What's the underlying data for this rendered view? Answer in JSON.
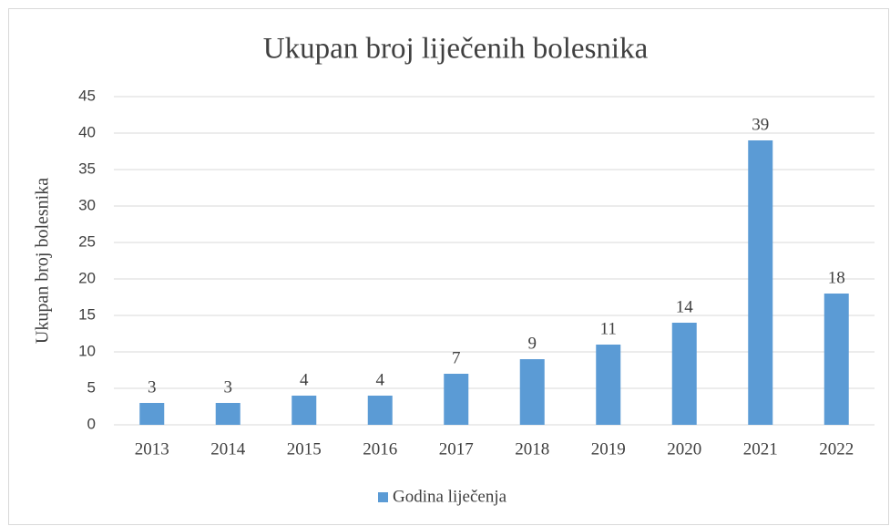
{
  "chart_data": {
    "type": "bar",
    "title": "Ukupan broj liječenih bolesnika",
    "y_label": "Ukupan broj bolesnika",
    "categories": [
      "2013",
      "2014",
      "2015",
      "2016",
      "2017",
      "2018",
      "2019",
      "2020",
      "2021",
      "2022"
    ],
    "series": [
      {
        "name": "Godina liječenja",
        "color": "#5b9bd5",
        "values": [
          3,
          3,
          4,
          4,
          7,
          9,
          11,
          14,
          39,
          18
        ]
      }
    ],
    "ylim": [
      0,
      45
    ],
    "yticks": [
      0,
      5,
      10,
      15,
      20,
      25,
      30,
      35,
      40,
      45
    ],
    "grid": true,
    "legend": "bottom",
    "data_labels": true
  }
}
